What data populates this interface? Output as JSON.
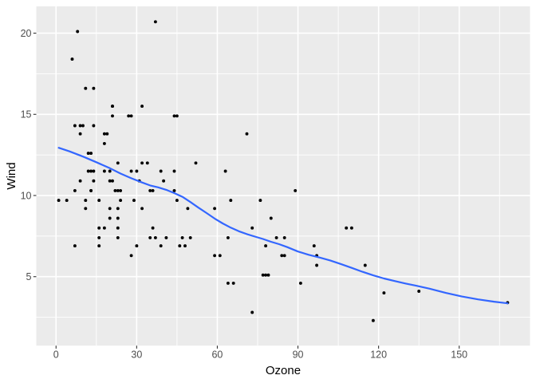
{
  "chart_data": {
    "type": "scatter",
    "title": "",
    "xlabel": "Ozone",
    "ylabel": "Wind",
    "legend_position": "none",
    "grid": true,
    "xlim": [
      -7.35,
      176.35
    ],
    "ylim": [
      0.75,
      21.65
    ],
    "x_major_ticks": [
      0,
      30,
      60,
      90,
      120,
      150
    ],
    "x_minor_ticks": [
      15,
      45,
      75,
      105,
      135,
      165
    ],
    "y_major_ticks": [
      5,
      10,
      15,
      20
    ],
    "y_minor_ticks": [
      2.5,
      7.5,
      12.5,
      17.5
    ],
    "points": [
      [
        41,
        7.4
      ],
      [
        36,
        8
      ],
      [
        12,
        12.6
      ],
      [
        18,
        11.5
      ],
      [
        28,
        14.9
      ],
      [
        23,
        8.6
      ],
      [
        19,
        13.8
      ],
      [
        8,
        20.1
      ],
      [
        7,
        6.9
      ],
      [
        16,
        9.7
      ],
      [
        11,
        9.2
      ],
      [
        14,
        10.9
      ],
      [
        18,
        13.2
      ],
      [
        14,
        11.5
      ],
      [
        34,
        12
      ],
      [
        6,
        18.4
      ],
      [
        30,
        11.5
      ],
      [
        11,
        9.7
      ],
      [
        1,
        9.7
      ],
      [
        11,
        16.6
      ],
      [
        4,
        9.7
      ],
      [
        32,
        12
      ],
      [
        23,
        12
      ],
      [
        45,
        14.9
      ],
      [
        115,
        5.7
      ],
      [
        37,
        7.4
      ],
      [
        29,
        9.7
      ],
      [
        71,
        13.8
      ],
      [
        39,
        11.5
      ],
      [
        23,
        8
      ],
      [
        21,
        14.9
      ],
      [
        37,
        20.7
      ],
      [
        20,
        9.2
      ],
      [
        12,
        11.5
      ],
      [
        13,
        10.3
      ],
      [
        135,
        4.1
      ],
      [
        49,
        9.2
      ],
      [
        32,
        9.2
      ],
      [
        64,
        4.6
      ],
      [
        40,
        10.9
      ],
      [
        77,
        5.1
      ],
      [
        97,
        6.3
      ],
      [
        97,
        5.7
      ],
      [
        85,
        7.4
      ],
      [
        10,
        14.3
      ],
      [
        27,
        14.9
      ],
      [
        7,
        14.3
      ],
      [
        48,
        6.9
      ],
      [
        35,
        10.3
      ],
      [
        61,
        6.3
      ],
      [
        79,
        5.1
      ],
      [
        63,
        11.5
      ],
      [
        16,
        6.9
      ],
      [
        80,
        8.6
      ],
      [
        108,
        8
      ],
      [
        20,
        8.6
      ],
      [
        52,
        12
      ],
      [
        82,
        7.4
      ],
      [
        50,
        7.4
      ],
      [
        64,
        7.4
      ],
      [
        59,
        9.2
      ],
      [
        39,
        6.9
      ],
      [
        9,
        13.8
      ],
      [
        16,
        7.4
      ],
      [
        78,
        6.9
      ],
      [
        35,
        7.4
      ],
      [
        66,
        4.6
      ],
      [
        122,
        4
      ],
      [
        89,
        10.3
      ],
      [
        110,
        8
      ],
      [
        44,
        11.5
      ],
      [
        28,
        11.5
      ],
      [
        65,
        9.7
      ],
      [
        22,
        10.3
      ],
      [
        59,
        6.3
      ],
      [
        23,
        7.4
      ],
      [
        31,
        10.9
      ],
      [
        44,
        10.3
      ],
      [
        21,
        15.5
      ],
      [
        9,
        14.3
      ],
      [
        45,
        9.7
      ],
      [
        168,
        3.4
      ],
      [
        73,
        8
      ],
      [
        76,
        9.7
      ],
      [
        118,
        2.3
      ],
      [
        84,
        6.3
      ],
      [
        85,
        6.3
      ],
      [
        96,
        6.9
      ],
      [
        78,
        5.1
      ],
      [
        73,
        2.8
      ],
      [
        91,
        4.6
      ],
      [
        47,
        7.4
      ],
      [
        32,
        15.5
      ],
      [
        20,
        10.9
      ],
      [
        23,
        10.3
      ],
      [
        21,
        10.9
      ],
      [
        24,
        9.7
      ],
      [
        44,
        14.9
      ],
      [
        21,
        15.5
      ],
      [
        28,
        6.3
      ],
      [
        9,
        10.9
      ],
      [
        13,
        11.5
      ],
      [
        46,
        6.9
      ],
      [
        18,
        13.8
      ],
      [
        13,
        10.3
      ],
      [
        24,
        10.3
      ],
      [
        16,
        8
      ],
      [
        13,
        12.6
      ],
      [
        23,
        9.2
      ],
      [
        36,
        10.3
      ],
      [
        7,
        10.3
      ],
      [
        14,
        16.6
      ],
      [
        30,
        6.9
      ],
      [
        14,
        14.3
      ],
      [
        18,
        8
      ],
      [
        20,
        11.5
      ]
    ],
    "smooth_line": {
      "method": "loess",
      "x": [
        1,
        5,
        10,
        15,
        20,
        24,
        28,
        32,
        35,
        38,
        41,
        44,
        47,
        50,
        53,
        56,
        59,
        62,
        65,
        68,
        71,
        74,
        77,
        80,
        83,
        86,
        90,
        94,
        98,
        102,
        106,
        110,
        114,
        118,
        122,
        126,
        130,
        134,
        139,
        145,
        151,
        157,
        163,
        168
      ],
      "y": [
        12.94,
        12.72,
        12.4,
        12.05,
        11.68,
        11.35,
        11.06,
        10.8,
        10.62,
        10.5,
        10.35,
        10.15,
        9.92,
        9.6,
        9.25,
        8.92,
        8.58,
        8.28,
        8.02,
        7.8,
        7.62,
        7.47,
        7.32,
        7.15,
        7.0,
        6.82,
        6.55,
        6.35,
        6.18,
        6.0,
        5.78,
        5.54,
        5.3,
        5.08,
        4.89,
        4.73,
        4.58,
        4.44,
        4.26,
        4.0,
        3.78,
        3.6,
        3.46,
        3.36
      ]
    },
    "style": {
      "background": "#FFFFFF",
      "panel_background": "#EBEBEB",
      "grid_major_color": "#FFFFFF",
      "grid_minor_color": "#FFFFFF",
      "point_color": "#000000",
      "smooth_color": "#3366FF",
      "tick_mark_color": "#333333",
      "tick_label_color": "#4D4D4D",
      "axis_title_color": "#000000"
    }
  }
}
